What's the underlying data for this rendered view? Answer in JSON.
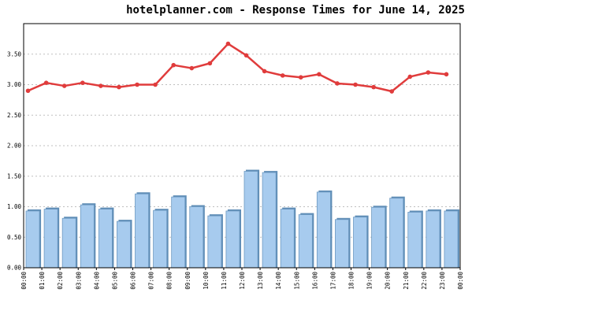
{
  "chart_data": {
    "type": "bar",
    "title": "hotelplanner.com - Response Times for June 14, 2025",
    "xlabel": "",
    "ylabel": "",
    "ylim": [
      0,
      4.0
    ],
    "grid": true,
    "y_ticks": [
      "0.00",
      "0.50",
      "1.00",
      "1.50",
      "2.00",
      "2.50",
      "3.00",
      "3.50"
    ],
    "x_ticks": [
      "00:00",
      "01:00",
      "02:00",
      "03:00",
      "04:00",
      "05:00",
      "06:00",
      "07:00",
      "08:00",
      "09:00",
      "10:00",
      "11:00",
      "12:00",
      "13:00",
      "14:00",
      "15:00",
      "16:00",
      "17:00",
      "18:00",
      "19:00",
      "20:00",
      "21:00",
      "22:00",
      "23:00",
      "00:00"
    ],
    "categories": [
      "00:00",
      "01:00",
      "02:00",
      "03:00",
      "04:00",
      "05:00",
      "06:00",
      "07:00",
      "08:00",
      "09:00",
      "10:00",
      "11:00",
      "12:00",
      "13:00",
      "14:00",
      "15:00",
      "16:00",
      "17:00",
      "18:00",
      "19:00",
      "20:00",
      "21:00",
      "22:00",
      "23:00"
    ],
    "series": [
      {
        "kind": "bar",
        "color": "#a7cbee",
        "values": [
          0.93,
          0.96,
          0.81,
          1.03,
          0.96,
          0.76,
          1.21,
          0.94,
          1.16,
          1.0,
          0.85,
          0.93,
          1.58,
          1.56,
          0.96,
          0.87,
          1.24,
          0.79,
          0.83,
          0.99,
          1.14,
          0.91,
          0.93,
          0.93
        ]
      },
      {
        "kind": "line",
        "color": "#e03c3c",
        "values": [
          2.9,
          3.03,
          2.98,
          3.03,
          2.98,
          2.96,
          3.0,
          3.0,
          3.32,
          3.27,
          3.35,
          3.67,
          3.48,
          3.22,
          3.15,
          3.12,
          3.17,
          3.02,
          3.0,
          2.96,
          2.89,
          3.13,
          3.2,
          3.17
        ]
      }
    ]
  }
}
